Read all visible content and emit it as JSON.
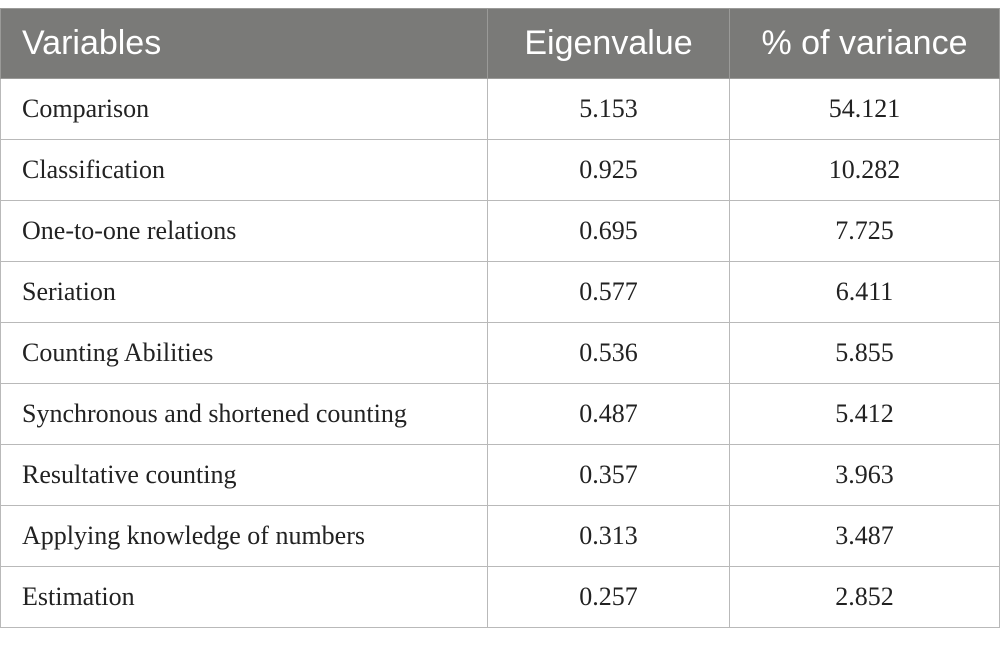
{
  "table": {
    "headers": [
      "Variables",
      "Eigenvalue",
      "% of variance"
    ],
    "rows": [
      [
        "Comparison",
        "5.153",
        "54.121"
      ],
      [
        "Classification",
        "0.925",
        "10.282"
      ],
      [
        "One-to-one relations",
        "0.695",
        "7.725"
      ],
      [
        "Seriation",
        "0.577",
        "6.411"
      ],
      [
        "Counting Abilities",
        "0.536",
        "5.855"
      ],
      [
        "Synchronous and shortened counting",
        "0.487",
        "5.412"
      ],
      [
        "Resultative counting",
        "0.357",
        "3.963"
      ],
      [
        "Applying knowledge of numbers",
        "0.313",
        "3.487"
      ],
      [
        "Estimation",
        "0.257",
        "2.852"
      ]
    ]
  },
  "colors": {
    "header_background": "#7a7a78",
    "header_text": "#ffffff",
    "border": "#b9b9b9",
    "body_text": "#222222"
  }
}
